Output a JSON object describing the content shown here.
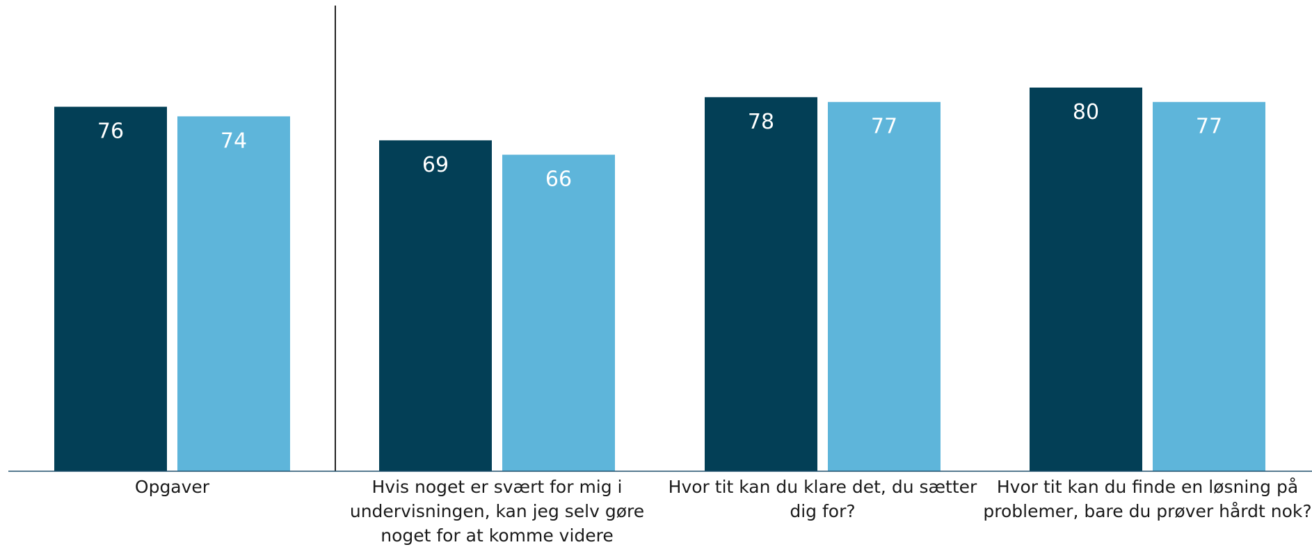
{
  "chart_data": {
    "type": "bar",
    "categories": [
      [
        "Opgaver"
      ],
      [
        "Hvis noget er svært for mig i",
        "undervisningen, kan jeg selv gøre",
        "noget for at komme videre"
      ],
      [
        "Hvor tit kan du klare det, du sætter",
        "dig for?"
      ],
      [
        "Hvor tit kan du finde en løsning på",
        "problemer, bare du prøver hårdt nok?"
      ]
    ],
    "series": [
      {
        "values": [
          76,
          69,
          78,
          80
        ],
        "color": "#033f56"
      },
      {
        "values": [
          74,
          66,
          77,
          77
        ],
        "color": "#5eb5da"
      }
    ],
    "title": "",
    "xlabel": "",
    "ylabel": "",
    "ylim": [
      0,
      100
    ],
    "grid": false,
    "legend": "none",
    "data_labels": true,
    "separator_after_category": 0
  }
}
